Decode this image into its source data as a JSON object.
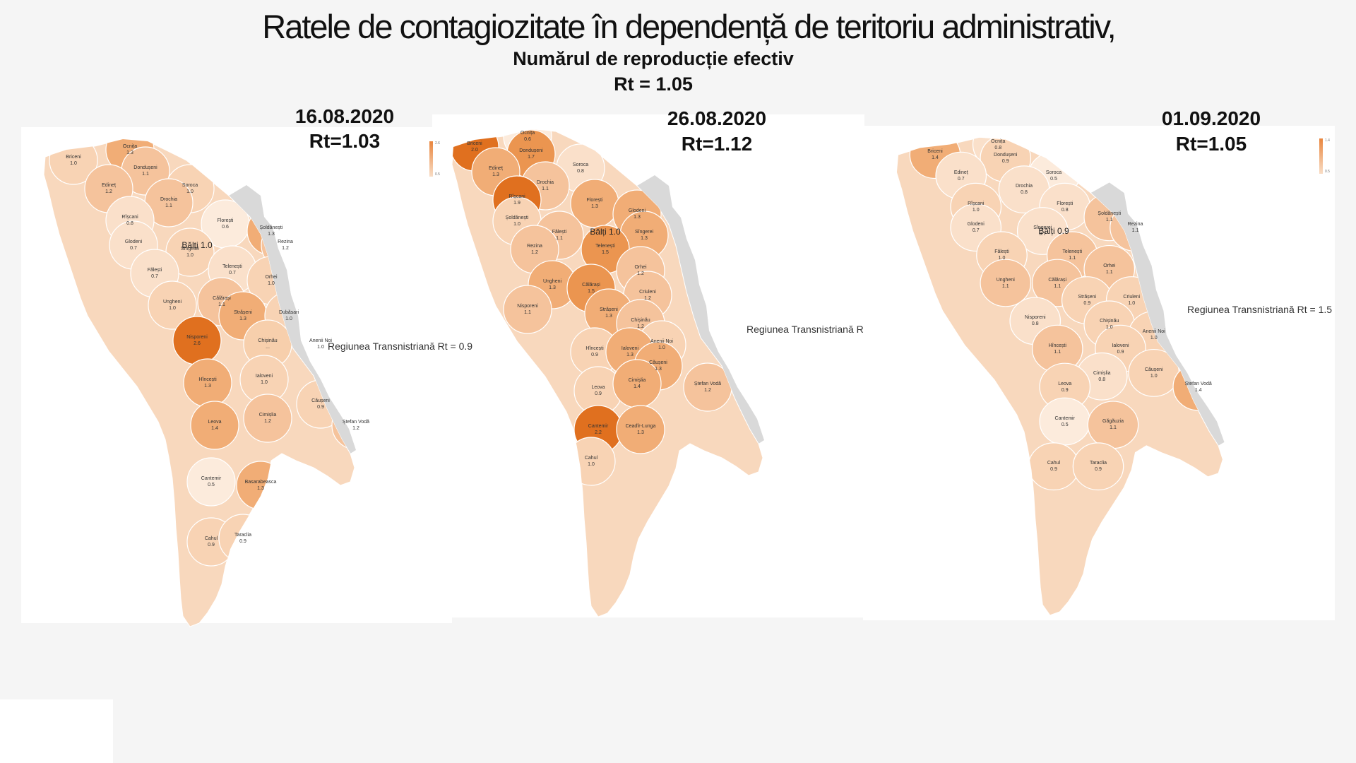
{
  "header": {
    "title": "Ratele de contagiozitate în dependență de teritoriu administrativ,",
    "subtitle": "Numărul de reproducție efectiv",
    "rt": "Rt = 1.05"
  },
  "colors": {
    "low": "#fbe2cd",
    "mid": "#f4bb8d",
    "high": "#e0701f",
    "transnistria": "#d9d9d9",
    "background": "#f5f5f5"
  },
  "maps": [
    {
      "date": "16.08.2020",
      "rt": "Rt=1.03",
      "balti": "Bălți 1.0",
      "transnistria": "Regiunea Transnistriană Rt = 0.9",
      "legend_max": "2.6",
      "legend_min": "0.5",
      "districts": [
        {
          "name": "Briceni",
          "value": "1.0"
        },
        {
          "name": "Ocnița",
          "value": "1.3"
        },
        {
          "name": "Dondușeni",
          "value": "1.1"
        },
        {
          "name": "Edineț",
          "value": "1.2"
        },
        {
          "name": "Soroca",
          "value": "1.0"
        },
        {
          "name": "Drochia",
          "value": "1.1"
        },
        {
          "name": "Rîșcani",
          "value": "0.8"
        },
        {
          "name": "Florești",
          "value": "0.6"
        },
        {
          "name": "Șoldănești",
          "value": "1.3"
        },
        {
          "name": "Glodeni",
          "value": "0.7"
        },
        {
          "name": "Sîngerei",
          "value": "1.0"
        },
        {
          "name": "Rezina",
          "value": "1.2"
        },
        {
          "name": "Fălești",
          "value": "0.7"
        },
        {
          "name": "Telenești",
          "value": "0.7"
        },
        {
          "name": "Orhei",
          "value": "1.0"
        },
        {
          "name": "Ungheni",
          "value": "1.0"
        },
        {
          "name": "Călărași",
          "value": "1.1"
        },
        {
          "name": "Nisporeni",
          "value": "2.6"
        },
        {
          "name": "Strășeni",
          "value": "1.3"
        },
        {
          "name": "Dubăsari",
          "value": "1.0"
        },
        {
          "name": "Chișinău",
          "value": "..."
        },
        {
          "name": "Anenii Noi",
          "value": "1.0"
        },
        {
          "name": "Hîncești",
          "value": "1.3"
        },
        {
          "name": "Ialoveni",
          "value": "1.0"
        },
        {
          "name": "Cimișlia",
          "value": "1.2"
        },
        {
          "name": "Căușeni",
          "value": "0.9"
        },
        {
          "name": "Ștefan Vodă",
          "value": "1.2"
        },
        {
          "name": "Leova",
          "value": "1.4"
        },
        {
          "name": "Cantemir",
          "value": "0.5"
        },
        {
          "name": "Basarabeasca",
          "value": "1.3"
        },
        {
          "name": "Cahul",
          "value": "0.9"
        },
        {
          "name": "Taraclia",
          "value": "0.9"
        }
      ]
    },
    {
      "date": "26.08.2020",
      "rt": "Rt=1.12",
      "balti": "Bălți 1.0",
      "transnistria": "Regiunea Transnistriană R",
      "legend_max": "",
      "legend_min": "",
      "districts": [
        {
          "name": "Briceni",
          "value": "2.0"
        },
        {
          "name": "Ocnița",
          "value": "0.6"
        },
        {
          "name": "Dondușeni",
          "value": "1.7"
        },
        {
          "name": "Edineț",
          "value": "1.3"
        },
        {
          "name": "Soroca",
          "value": "0.8"
        },
        {
          "name": "Drochia",
          "value": "1.1"
        },
        {
          "name": "Rîșcani",
          "value": "1.9"
        },
        {
          "name": "Florești",
          "value": "1.3"
        },
        {
          "name": "Glodeni",
          "value": "1.3"
        },
        {
          "name": "Șoldănești",
          "value": "1.0"
        },
        {
          "name": "Fălești",
          "value": "1.1"
        },
        {
          "name": "Sîngerei",
          "value": "1.3"
        },
        {
          "name": "Rezina",
          "value": "1.2"
        },
        {
          "name": "Telenești",
          "value": "1.5"
        },
        {
          "name": "Orhei",
          "value": "1.2"
        },
        {
          "name": "Ungheni",
          "value": "1.3"
        },
        {
          "name": "Călărași",
          "value": "1.5"
        },
        {
          "name": "Criuleni",
          "value": "1.2"
        },
        {
          "name": "Nisporeni",
          "value": "1.1"
        },
        {
          "name": "Strășeni",
          "value": "1.3"
        },
        {
          "name": "Chișinău",
          "value": "1.2"
        },
        {
          "name": "Anenii Noi",
          "value": "1.0"
        },
        {
          "name": "Hîncești",
          "value": "0.9"
        },
        {
          "name": "Ialoveni",
          "value": "1.3"
        },
        {
          "name": "Căușeni",
          "value": "1.3"
        },
        {
          "name": "Leova",
          "value": "0.9"
        },
        {
          "name": "Cimișlia",
          "value": "1.4"
        },
        {
          "name": "Ștefan Vodă",
          "value": "1.2"
        },
        {
          "name": "Cantemir",
          "value": "2.2"
        },
        {
          "name": "Ceadîr-Lunga",
          "value": "1.3"
        },
        {
          "name": "Cahul",
          "value": "1.0"
        }
      ]
    },
    {
      "date": "01.09.2020",
      "rt": "Rt=1.05",
      "balti": "Bălți 0.9",
      "transnistria": "Regiunea Transnistriană Rt = 1.5",
      "legend_max": "1.4",
      "legend_min": "0.5",
      "districts": [
        {
          "name": "Ocnița",
          "value": "0.8"
        },
        {
          "name": "Briceni",
          "value": "1.4"
        },
        {
          "name": "Dondușeni",
          "value": "0.9"
        },
        {
          "name": "Edineț",
          "value": "0.7"
        },
        {
          "name": "Soroca",
          "value": "0.5"
        },
        {
          "name": "Drochia",
          "value": "0.8"
        },
        {
          "name": "Rîșcani",
          "value": "1.0"
        },
        {
          "name": "Florești",
          "value": "0.8"
        },
        {
          "name": "Șoldănești",
          "value": "1.1"
        },
        {
          "name": "Glodeni",
          "value": "0.7"
        },
        {
          "name": "Sîngerei",
          "value": "0.7"
        },
        {
          "name": "Rezina",
          "value": "1.1"
        },
        {
          "name": "Fălești",
          "value": "1.0"
        },
        {
          "name": "Telenești",
          "value": "1.1"
        },
        {
          "name": "Orhei",
          "value": "1.1"
        },
        {
          "name": "Ungheni",
          "value": "1.1"
        },
        {
          "name": "Călărași",
          "value": "1.1"
        },
        {
          "name": "Strășeni",
          "value": "0.9"
        },
        {
          "name": "Criuleni",
          "value": "1.0"
        },
        {
          "name": "Nisporeni",
          "value": "0.8"
        },
        {
          "name": "Chișinău",
          "value": "1.0"
        },
        {
          "name": "Anenii Noi",
          "value": "1.0"
        },
        {
          "name": "Hîncești",
          "value": "1.1"
        },
        {
          "name": "Ialoveni",
          "value": "0.9"
        },
        {
          "name": "Căușeni",
          "value": "1.0"
        },
        {
          "name": "Cimișlia",
          "value": "0.8"
        },
        {
          "name": "Leova",
          "value": "0.9"
        },
        {
          "name": "Ștefan Vodă",
          "value": "1.4"
        },
        {
          "name": "Cantemir",
          "value": "0.5"
        },
        {
          "name": "Găgăuzia",
          "value": "1.1"
        },
        {
          "name": "Cahul",
          "value": "0.9"
        },
        {
          "name": "Taraclia",
          "value": "0.9"
        }
      ]
    }
  ]
}
